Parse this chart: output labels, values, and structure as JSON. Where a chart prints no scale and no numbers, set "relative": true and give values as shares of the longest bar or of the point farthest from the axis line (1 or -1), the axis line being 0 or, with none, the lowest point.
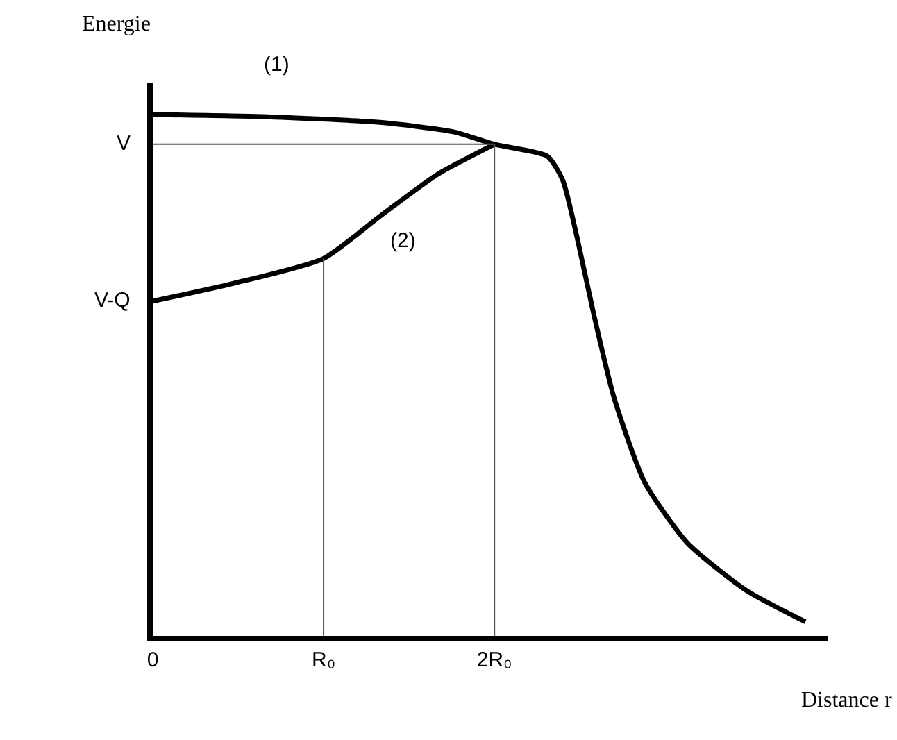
{
  "chart_data": {
    "type": "line",
    "xlabel": "Distance r",
    "ylabel": "Energie",
    "relative": true,
    "xlim": [
      0,
      3.95
    ],
    "xticks": [
      0,
      {
        "value": 1,
        "label": "R₀"
      },
      {
        "value": 2,
        "label": "2R₀"
      }
    ],
    "marker": "none",
    "line_style": "solid",
    "series": [
      {
        "color": "#000000",
        "x": [
          0,
          0.64,
          1.33,
          1.76,
          2.0,
          2.31,
          2.4,
          2.49,
          2.58,
          2.7,
          2.88,
          3.13,
          3.48,
          3.82
        ],
        "values": [
          1,
          0.996,
          0.985,
          0.967,
          0.943,
          0.92,
          0.874,
          0.755,
          0.619,
          0.457,
          0.294,
          0.178,
          0.086,
          0.027
        ]
      },
      {
        "color": "#000000",
        "x": [
          0,
          0.47,
          1,
          1.33,
          1.67,
          2
        ],
        "values": [
          0.642,
          0.676,
          0.724,
          0.805,
          0.886,
          0.943
        ]
      },
      {
        "color": "#555555",
        "x": [
          1,
          1
        ],
        "values": [
          0,
          0.724
        ]
      },
      {
        "color": "#555555",
        "x": [
          2,
          2
        ],
        "values": [
          0,
          0.943
        ]
      },
      {
        "color": "#555555",
        "x": [
          0,
          2
        ],
        "values": [
          0.943,
          0.943
        ]
      }
    ],
    "annotations": [
      "(1)",
      "(2)",
      {
        "text": "V",
        "x": 0,
        "y": 0.943
      },
      {
        "text": "V-Q",
        "x": 0,
        "y": 0.642
      }
    ]
  }
}
